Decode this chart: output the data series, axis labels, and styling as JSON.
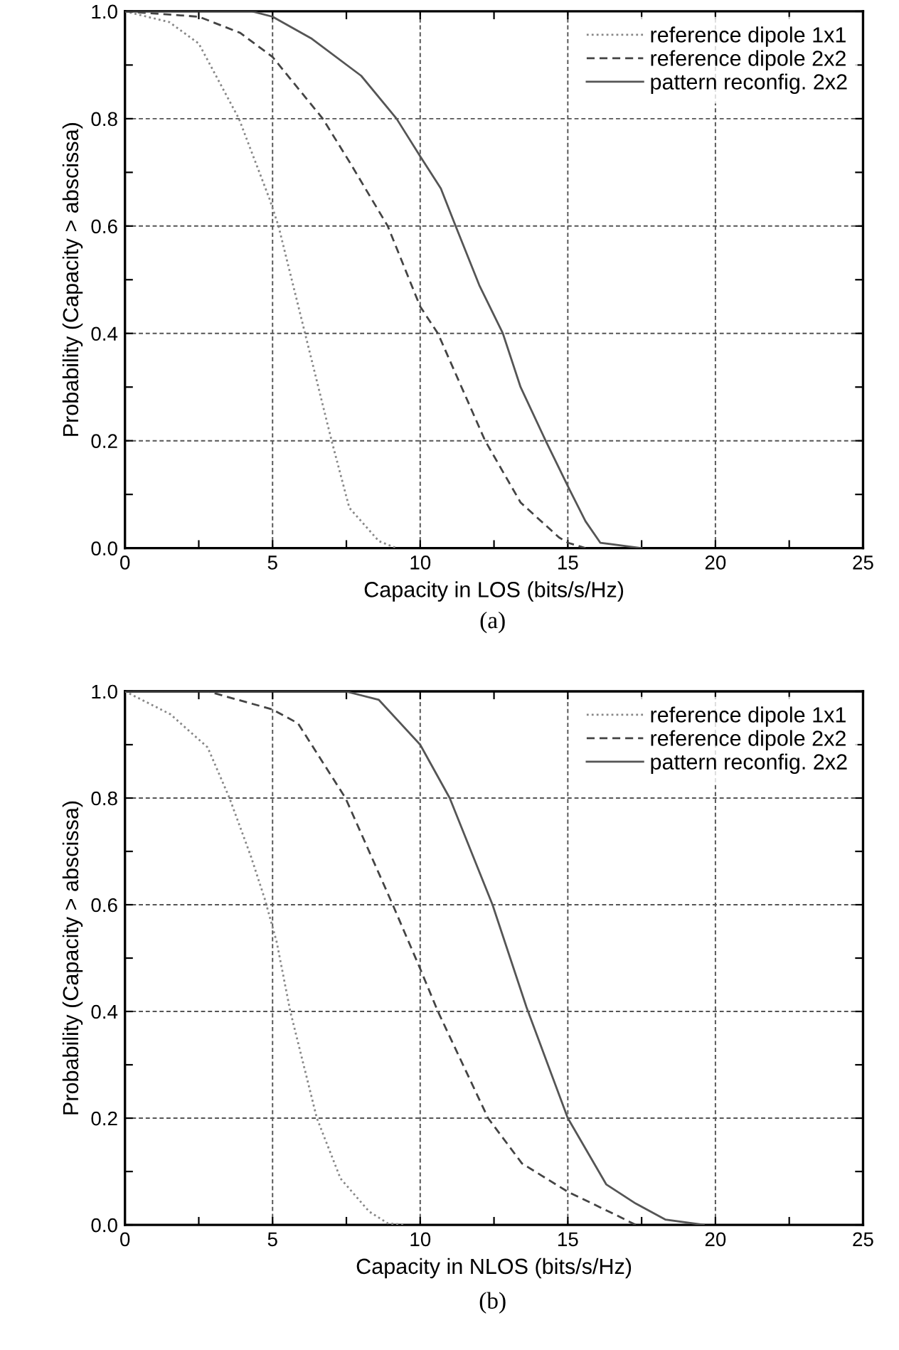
{
  "chart_data": [
    {
      "type": "line",
      "xlabel": "Capacity in LOS (bits/s/Hz)",
      "ylabel": "Probability (Capacity > abscissa)",
      "annotations": [
        "(a)"
      ],
      "xlim": [
        0,
        25
      ],
      "ylim": [
        0,
        1.0
      ],
      "xticks": [
        0,
        {
          "value": 2.5,
          "label": null
        },
        5,
        {
          "value": 7.5,
          "label": null
        },
        10,
        {
          "value": 12.5,
          "label": null
        },
        15,
        {
          "value": 17.5,
          "label": null
        },
        20,
        {
          "value": 22.5,
          "label": null
        },
        25
      ],
      "yticks": [
        {
          "value": 0,
          "label": "0.0"
        },
        {
          "value": 0.1,
          "label": null
        },
        0.2,
        {
          "value": 0.3,
          "label": null
        },
        0.4,
        {
          "value": 0.5,
          "label": null
        },
        0.6,
        {
          "value": 0.7,
          "label": null
        },
        0.8,
        {
          "value": 0.9,
          "label": null
        },
        {
          "value": 1.0,
          "label": "1.0"
        }
      ],
      "grid": true,
      "legend": "top right",
      "series": [
        {
          "name": "reference dipole 1x1",
          "color": "#888888",
          "line_style": "dotted",
          "x": [
            0,
            1.5,
            2.5,
            3.86,
            4.9,
            5.2,
            6.1,
            7.0,
            7.6,
            8.6,
            9.2
          ],
          "values": [
            1.0,
            0.98,
            0.94,
            0.8,
            0.65,
            0.6,
            0.4,
            0.2,
            0.075,
            0.013,
            0
          ]
        },
        {
          "name": "reference dipole 2x2",
          "color": "#444444",
          "line_style": "dashed",
          "x": [
            0,
            2.5,
            3.9,
            5.0,
            6.7,
            7.6,
            8.9,
            10.0,
            10.6,
            12.2,
            13.4,
            14.7,
            15.0,
            15.6
          ],
          "values": [
            1.0,
            0.99,
            0.96,
            0.915,
            0.8,
            0.72,
            0.6,
            0.45,
            0.4,
            0.2,
            0.085,
            0.02,
            0.01,
            0
          ]
        },
        {
          "name": "pattern reconfig. 2x2",
          "color": "#555555",
          "line_style": "solid",
          "x": [
            0,
            4.3,
            5.0,
            6.3,
            8.0,
            9.2,
            10.0,
            10.7,
            11.2,
            12.0,
            12.8,
            13.4,
            14.25,
            15.05,
            15.6,
            16.1,
            17.5
          ],
          "values": [
            1.0,
            1.0,
            0.99,
            0.95,
            0.88,
            0.8,
            0.73,
            0.67,
            0.6,
            0.49,
            0.4,
            0.3,
            0.2,
            0.11,
            0.05,
            0.01,
            0
          ]
        }
      ]
    },
    {
      "type": "line",
      "xlabel": "Capacity in NLOS (bits/s/Hz)",
      "ylabel": "Probability (Capacity > abscissa)",
      "annotations": [
        "(b)"
      ],
      "xlim": [
        0,
        25
      ],
      "ylim": [
        0,
        1.0
      ],
      "xticks": [
        0,
        {
          "value": 2.5,
          "label": null
        },
        5,
        {
          "value": 7.5,
          "label": null
        },
        10,
        {
          "value": 12.5,
          "label": null
        },
        15,
        {
          "value": 17.5,
          "label": null
        },
        20,
        {
          "value": 22.5,
          "label": null
        },
        25
      ],
      "yticks": [
        {
          "value": 0,
          "label": "0.0"
        },
        {
          "value": 0.1,
          "label": null
        },
        0.2,
        {
          "value": 0.3,
          "label": null
        },
        0.4,
        {
          "value": 0.5,
          "label": null
        },
        0.6,
        {
          "value": 0.7,
          "label": null
        },
        0.8,
        {
          "value": 0.9,
          "label": null
        },
        {
          "value": 1.0,
          "label": "1.0"
        }
      ],
      "grid": true,
      "legend": "top right",
      "series": [
        {
          "name": "reference dipole 1x1",
          "color": "#888888",
          "line_style": "dotted",
          "x": [
            0,
            1.54,
            2.8,
            3.54,
            4.27,
            4.74,
            5.14,
            5.6,
            6.5,
            7.3,
            8.27,
            8.9,
            9.5
          ],
          "values": [
            1.0,
            0.957,
            0.895,
            0.8,
            0.69,
            0.61,
            0.53,
            0.4,
            0.2,
            0.087,
            0.025,
            0.003,
            0
          ]
        },
        {
          "name": "reference dipole 2x2",
          "color": "#444444",
          "line_style": "dashed",
          "x": [
            0,
            2.8,
            5.0,
            5.86,
            7.47,
            9.07,
            10.0,
            10.6,
            12.3,
            13.45,
            15.0,
            16.65,
            17.3
          ],
          "values": [
            1.0,
            1.0,
            0.966,
            0.94,
            0.8,
            0.6,
            0.48,
            0.4,
            0.2,
            0.115,
            0.062,
            0.018,
            0
          ]
        },
        {
          "name": "pattern reconfig. 2x2",
          "color": "#555555",
          "line_style": "solid",
          "x": [
            0,
            7.47,
            8.6,
            10.0,
            11.0,
            12.45,
            13.6,
            15.0,
            16.3,
            17.3,
            18.3,
            19.6
          ],
          "values": [
            1.0,
            1.0,
            0.984,
            0.9,
            0.8,
            0.6,
            0.408,
            0.2,
            0.076,
            0.04,
            0.01,
            0
          ]
        }
      ]
    }
  ]
}
